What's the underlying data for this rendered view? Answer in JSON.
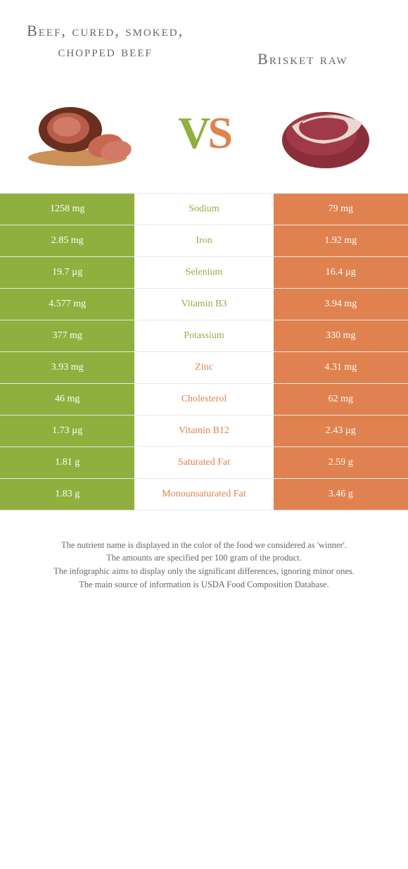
{
  "titles": {
    "left": "Beef, cured, smoked, chopped beef",
    "right": "Brisket raw"
  },
  "vs": {
    "v": "V",
    "s": "S"
  },
  "colors": {
    "green": "#8fb03e",
    "orange": "#e0824f",
    "text": "#666666",
    "border": "#e8e8e8"
  },
  "rows": [
    {
      "left": "1258 mg",
      "label": "Sodium",
      "right": "79 mg",
      "winner": "green"
    },
    {
      "left": "2.85 mg",
      "label": "Iron",
      "right": "1.92 mg",
      "winner": "green"
    },
    {
      "left": "19.7 µg",
      "label": "Selenium",
      "right": "16.4 µg",
      "winner": "green"
    },
    {
      "left": "4.577 mg",
      "label": "Vitamin B3",
      "right": "3.94 mg",
      "winner": "green"
    },
    {
      "left": "377 mg",
      "label": "Potassium",
      "right": "330 mg",
      "winner": "green"
    },
    {
      "left": "3.93 mg",
      "label": "Zinc",
      "right": "4.31 mg",
      "winner": "orange"
    },
    {
      "left": "46 mg",
      "label": "Cholesterol",
      "right": "62 mg",
      "winner": "orange"
    },
    {
      "left": "1.73 µg",
      "label": "Vitamin B12",
      "right": "2.43 µg",
      "winner": "orange"
    },
    {
      "left": "1.81 g",
      "label": "Saturated Fat",
      "right": "2.59 g",
      "winner": "orange"
    },
    {
      "left": "1.83 g",
      "label": "Monounsaturated Fat",
      "right": "3.46 g",
      "winner": "orange"
    }
  ],
  "footer": {
    "line1": "The nutrient name is displayed in the color of the food we considered as 'winner'.",
    "line2": "The amounts are specified per 100 gram of the product.",
    "line3": "The infographic aims to display only the significant differences, ignoring minor ones.",
    "line4": "The main source of information is USDA Food Composition Database."
  }
}
